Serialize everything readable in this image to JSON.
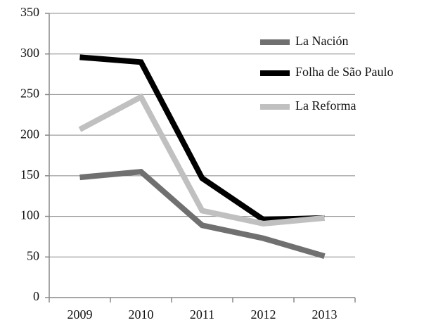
{
  "chart_data": {
    "type": "line",
    "categories": [
      "2009",
      "2010",
      "2011",
      "2012",
      "2013"
    ],
    "series": [
      {
        "name": "La Nación",
        "color": "#707070",
        "values": [
          148,
          155,
          89,
          73,
          51
        ]
      },
      {
        "name": "Folha de São Paulo",
        "color": "#000000",
        "values": [
          296,
          290,
          147,
          96,
          98
        ]
      },
      {
        "name": "La Reforma",
        "color": "#c0c0c0",
        "values": [
          207,
          247,
          107,
          91,
          98
        ]
      }
    ],
    "ylim": [
      0,
      350
    ],
    "yticks": [
      0,
      50,
      100,
      150,
      200,
      250,
      300,
      350
    ],
    "grid": true,
    "legend": "top-right"
  }
}
